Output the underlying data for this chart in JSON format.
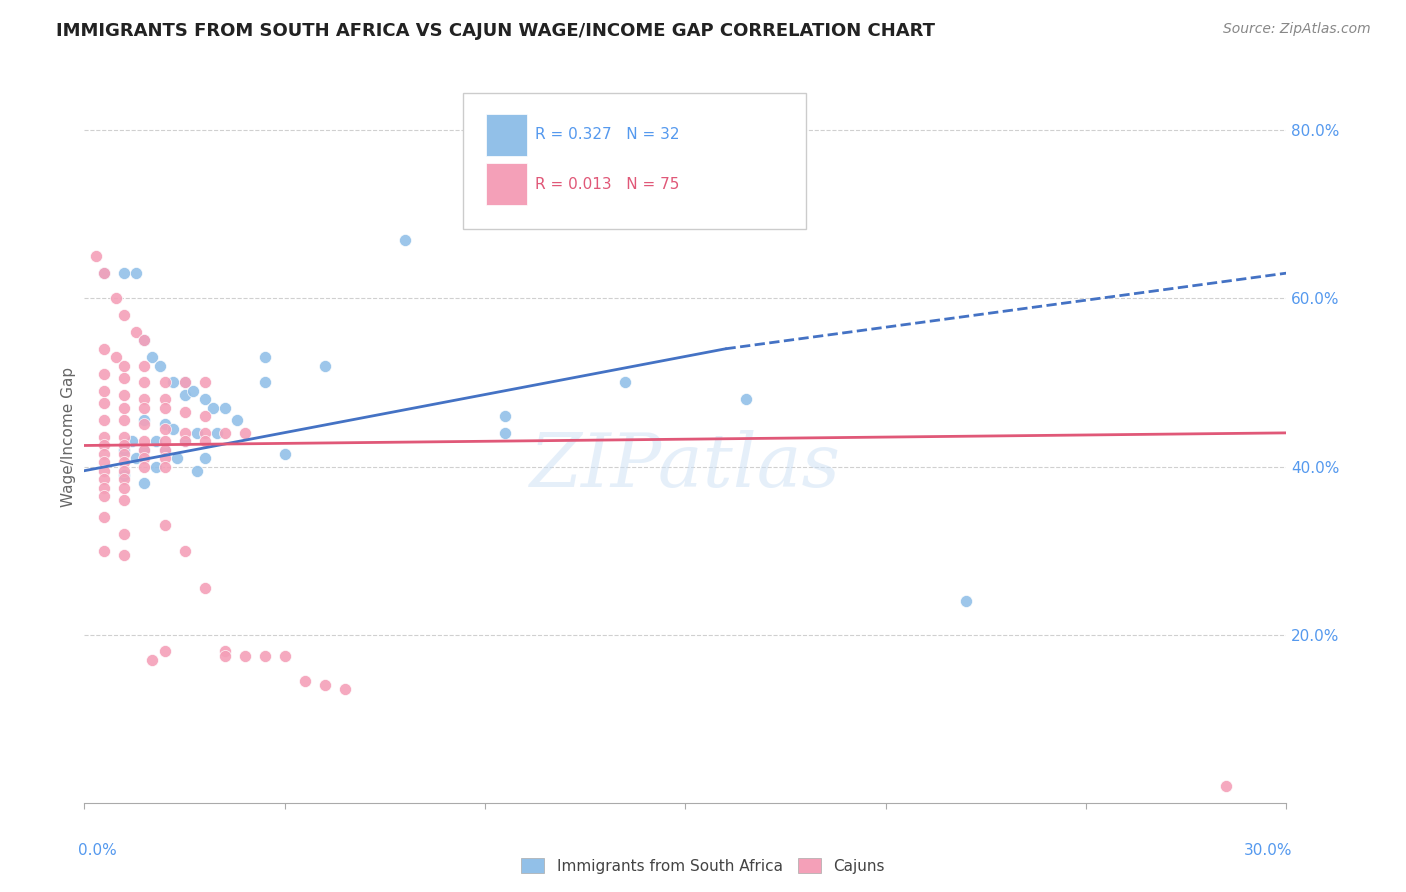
{
  "title": "IMMIGRANTS FROM SOUTH AFRICA VS CAJUN WAGE/INCOME GAP CORRELATION CHART",
  "source": "Source: ZipAtlas.com",
  "ylabel": "Wage/Income Gap",
  "right_axis_color": "#5599ee",
  "blue_color": "#92c0e8",
  "pink_color": "#f4a0b8",
  "blue_line_color": "#4472c4",
  "pink_line_color": "#e05878",
  "watermark": "ZIPatlas",
  "blue_scatter": [
    [
      0.5,
      0.63
    ],
    [
      1.0,
      0.63
    ],
    [
      1.3,
      0.63
    ],
    [
      1.5,
      0.55
    ],
    [
      1.7,
      0.53
    ],
    [
      1.9,
      0.52
    ],
    [
      2.2,
      0.5
    ],
    [
      2.5,
      0.5
    ],
    [
      2.5,
      0.485
    ],
    [
      2.7,
      0.49
    ],
    [
      3.0,
      0.48
    ],
    [
      3.2,
      0.47
    ],
    [
      3.5,
      0.47
    ],
    [
      3.8,
      0.455
    ],
    [
      1.5,
      0.455
    ],
    [
      2.0,
      0.45
    ],
    [
      2.2,
      0.445
    ],
    [
      2.8,
      0.44
    ],
    [
      3.3,
      0.44
    ],
    [
      1.2,
      0.43
    ],
    [
      1.8,
      0.43
    ],
    [
      2.5,
      0.43
    ],
    [
      1.0,
      0.42
    ],
    [
      1.5,
      0.42
    ],
    [
      2.0,
      0.42
    ],
    [
      1.3,
      0.41
    ],
    [
      2.3,
      0.41
    ],
    [
      3.0,
      0.41
    ],
    [
      1.8,
      0.4
    ],
    [
      2.8,
      0.395
    ],
    [
      1.0,
      0.39
    ],
    [
      1.5,
      0.38
    ],
    [
      8.0,
      0.67
    ],
    [
      13.5,
      0.5
    ],
    [
      16.5,
      0.48
    ],
    [
      10.5,
      0.46
    ],
    [
      10.5,
      0.44
    ],
    [
      22.0,
      0.24
    ],
    [
      4.5,
      0.53
    ],
    [
      4.5,
      0.5
    ],
    [
      6.0,
      0.52
    ],
    [
      5.0,
      0.415
    ]
  ],
  "pink_scatter": [
    [
      0.3,
      0.65
    ],
    [
      0.5,
      0.63
    ],
    [
      0.8,
      0.6
    ],
    [
      1.0,
      0.58
    ],
    [
      1.3,
      0.56
    ],
    [
      1.5,
      0.55
    ],
    [
      0.5,
      0.54
    ],
    [
      0.8,
      0.53
    ],
    [
      1.0,
      0.52
    ],
    [
      1.5,
      0.52
    ],
    [
      0.5,
      0.51
    ],
    [
      1.0,
      0.505
    ],
    [
      1.5,
      0.5
    ],
    [
      2.0,
      0.5
    ],
    [
      2.5,
      0.5
    ],
    [
      3.0,
      0.5
    ],
    [
      0.5,
      0.49
    ],
    [
      1.0,
      0.485
    ],
    [
      1.5,
      0.48
    ],
    [
      2.0,
      0.48
    ],
    [
      0.5,
      0.475
    ],
    [
      1.0,
      0.47
    ],
    [
      1.5,
      0.47
    ],
    [
      2.0,
      0.47
    ],
    [
      2.5,
      0.465
    ],
    [
      3.0,
      0.46
    ],
    [
      0.5,
      0.455
    ],
    [
      1.0,
      0.455
    ],
    [
      1.5,
      0.45
    ],
    [
      2.0,
      0.445
    ],
    [
      2.5,
      0.44
    ],
    [
      3.0,
      0.44
    ],
    [
      3.5,
      0.44
    ],
    [
      4.0,
      0.44
    ],
    [
      0.5,
      0.435
    ],
    [
      1.0,
      0.435
    ],
    [
      1.5,
      0.43
    ],
    [
      2.0,
      0.43
    ],
    [
      2.5,
      0.43
    ],
    [
      3.0,
      0.43
    ],
    [
      0.5,
      0.425
    ],
    [
      1.0,
      0.425
    ],
    [
      1.5,
      0.42
    ],
    [
      2.0,
      0.42
    ],
    [
      0.5,
      0.415
    ],
    [
      1.0,
      0.415
    ],
    [
      1.5,
      0.41
    ],
    [
      2.0,
      0.41
    ],
    [
      0.5,
      0.405
    ],
    [
      1.0,
      0.405
    ],
    [
      1.5,
      0.4
    ],
    [
      2.0,
      0.4
    ],
    [
      0.5,
      0.395
    ],
    [
      1.0,
      0.395
    ],
    [
      0.5,
      0.385
    ],
    [
      1.0,
      0.385
    ],
    [
      0.5,
      0.375
    ],
    [
      1.0,
      0.375
    ],
    [
      0.5,
      0.365
    ],
    [
      1.0,
      0.36
    ],
    [
      0.5,
      0.34
    ],
    [
      1.0,
      0.32
    ],
    [
      0.5,
      0.3
    ],
    [
      1.0,
      0.295
    ],
    [
      2.0,
      0.33
    ],
    [
      2.5,
      0.3
    ],
    [
      3.0,
      0.255
    ],
    [
      3.5,
      0.18
    ],
    [
      4.5,
      0.175
    ],
    [
      5.0,
      0.175
    ],
    [
      5.5,
      0.145
    ],
    [
      6.0,
      0.14
    ],
    [
      6.5,
      0.135
    ],
    [
      3.5,
      0.175
    ],
    [
      4.0,
      0.175
    ],
    [
      2.0,
      0.18
    ],
    [
      1.7,
      0.17
    ],
    [
      28.5,
      0.02
    ]
  ],
  "blue_marker_size": 75,
  "pink_marker_size": 75,
  "xlim": [
    0,
    30
  ],
  "ylim": [
    0.0,
    0.87
  ],
  "blue_trendline_solid": [
    [
      0,
      0.395
    ],
    [
      16.0,
      0.54
    ]
  ],
  "blue_trendline_dash": [
    [
      16.0,
      0.54
    ],
    [
      30.0,
      0.63
    ]
  ],
  "pink_trendline": [
    [
      0,
      0.425
    ],
    [
      30.0,
      0.44
    ]
  ],
  "yticks": [
    0.2,
    0.4,
    0.6,
    0.8
  ],
  "xticks": [
    0,
    5,
    10,
    15,
    20,
    25,
    30
  ],
  "grid_color": "#d0d0d0",
  "bg_color": "#ffffff"
}
